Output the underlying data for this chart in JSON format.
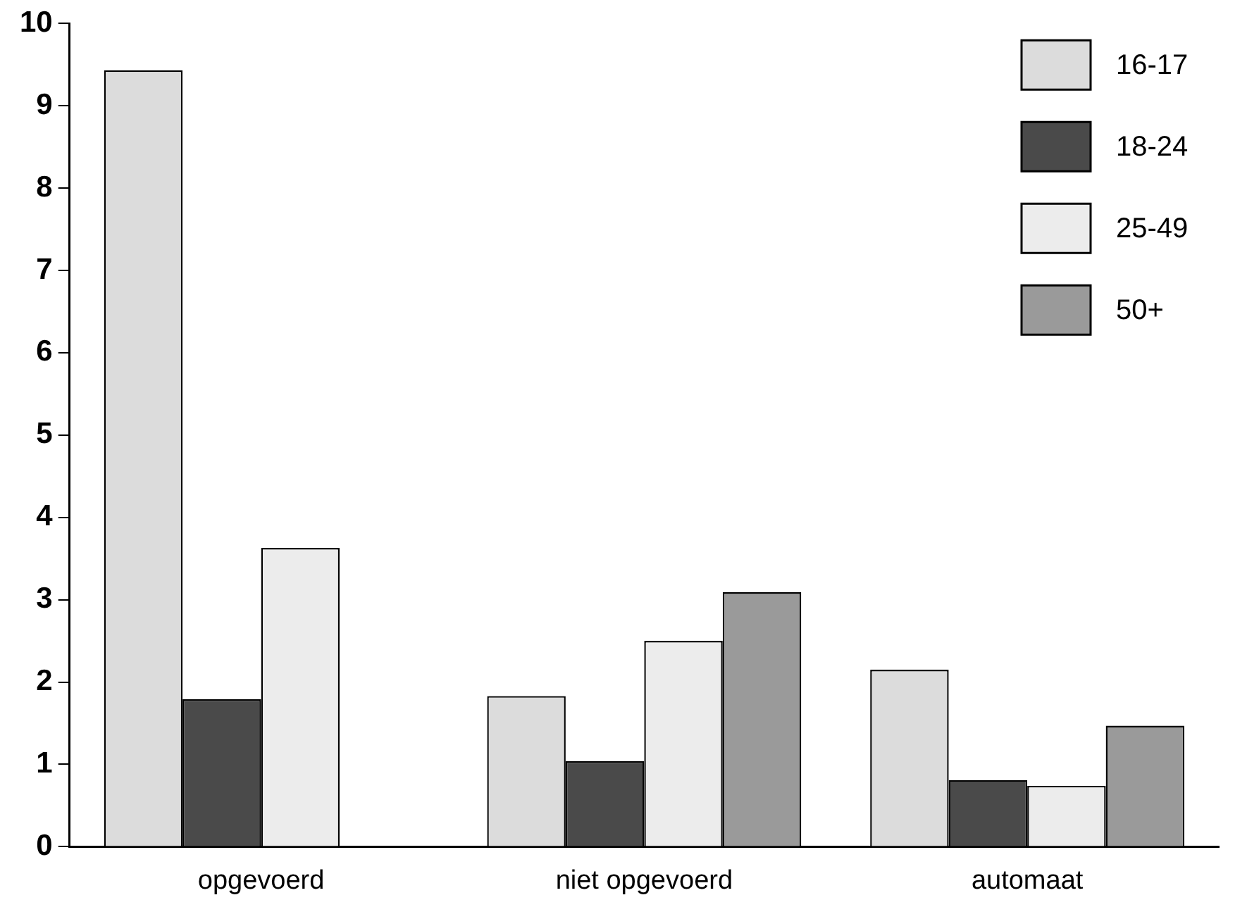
{
  "chart_data": {
    "type": "bar",
    "categories": [
      "opgevoerd",
      "niet opgevoerd",
      "automaat"
    ],
    "series": [
      {
        "name": "16-17",
        "color": "#dcdcdc",
        "values": [
          9.43,
          1.83,
          2.15
        ]
      },
      {
        "name": "18-24",
        "color": "#4a4a4a",
        "values": [
          1.79,
          1.04,
          0.81
        ]
      },
      {
        "name": "25-49",
        "color": "#ececec",
        "values": [
          3.63,
          2.5,
          0.74
        ]
      },
      {
        "name": "50+",
        "color": "#9a9a9a",
        "values": [
          null,
          3.09,
          1.47
        ]
      }
    ],
    "ylim": [
      0,
      10
    ],
    "yticks": [
      0,
      1,
      2,
      3,
      4,
      5,
      6,
      7,
      8,
      9,
      10
    ],
    "grid": false,
    "legend": "top right"
  }
}
